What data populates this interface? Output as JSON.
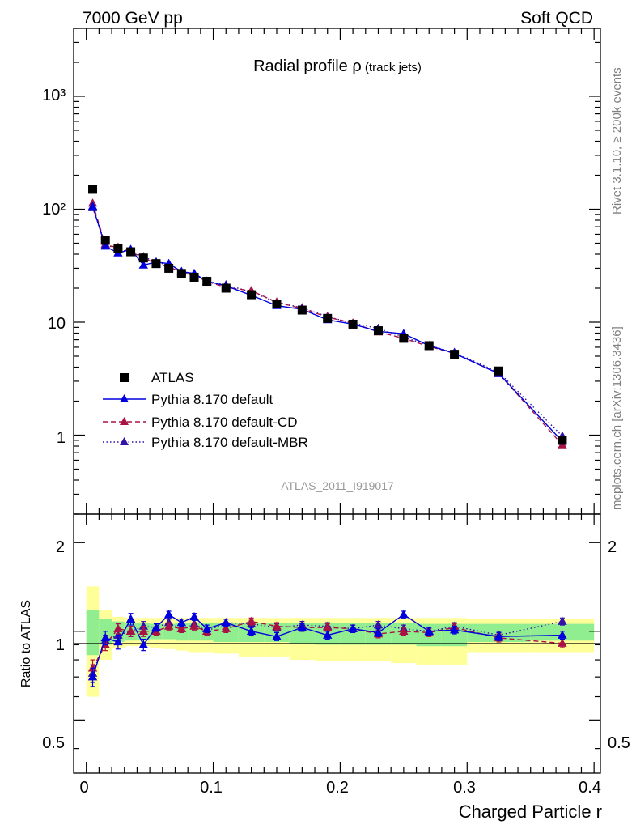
{
  "header": {
    "left": "7000 GeV pp",
    "right": "Soft QCD"
  },
  "side_labels": {
    "rivet": "Rivet 3.1.10, ≥ 200k events",
    "mcplots": "mcplots.cern.ch [arXiv:1306.3436]"
  },
  "chart_data": [
    {
      "type": "line",
      "title_main": "Radial profile ",
      "title_symbol": "ρ",
      "title_suffix": " (track jets)",
      "analysis_id": "ATLAS_2011_I919017",
      "yscale": "log",
      "xlim": [
        -0.01,
        0.405
      ],
      "ylim": [
        0.2,
        4000
      ],
      "ytick_labels": [
        "10³",
        "10²",
        "10",
        "1"
      ],
      "legend_position": "bottom-left",
      "x": [
        0.005,
        0.015,
        0.025,
        0.035,
        0.045,
        0.055,
        0.065,
        0.075,
        0.085,
        0.095,
        0.11,
        0.13,
        0.15,
        0.17,
        0.19,
        0.21,
        0.23,
        0.25,
        0.27,
        0.29,
        0.325,
        0.375
      ],
      "series": [
        {
          "name": "ATLAS",
          "color": "#000000",
          "marker": "square",
          "values": [
            150,
            53,
            45,
            42,
            37,
            33,
            30,
            27,
            25,
            23,
            20,
            17.5,
            14.5,
            12.8,
            10.8,
            9.6,
            8.4,
            7.2,
            6.2,
            5.2,
            3.7,
            0.9
          ]
        },
        {
          "name": "Pythia 8.170 default",
          "color": "#0000dd",
          "marker": "triangle",
          "line": "solid",
          "values": [
            106,
            47,
            41,
            44,
            32,
            34,
            33,
            28,
            27,
            23,
            21,
            17.3,
            14,
            13,
            10.5,
            9.6,
            8.3,
            7.9,
            6.2,
            5.3,
            3.5,
            0.88
          ]
        },
        {
          "name": "Pythia 8.170 default-CD",
          "color": "#aa1144",
          "marker": "triangle",
          "line": "dashed",
          "values": [
            113,
            48,
            46,
            42,
            37,
            33,
            31,
            27.5,
            26,
            23,
            20.3,
            19,
            15,
            13.2,
            11.1,
            9.8,
            8.2,
            7.2,
            6.1,
            5.3,
            3.5,
            0.82
          ]
        },
        {
          "name": "Pythia 8.170 default-MBR",
          "color": "#3311aa",
          "marker": "triangle",
          "line": "dotted",
          "values": [
            103,
            49,
            44,
            42,
            38,
            34,
            32,
            28,
            26.5,
            23,
            21.4,
            18.5,
            15,
            13.4,
            11.2,
            9.8,
            8.8,
            7.4,
            6.2,
            5.4,
            3.6,
            0.98
          ]
        }
      ]
    },
    {
      "type": "line",
      "ylabel": "Ratio to ATLAS",
      "xlabel": "Charged Particle r",
      "yscale": "log",
      "xlim": [
        -0.01,
        0.405
      ],
      "ylim": [
        0.33,
        2.5
      ],
      "ytick_labels": [
        "2",
        "1",
        "0.5"
      ],
      "xtick_labels": [
        "0",
        "0.1",
        "0.2",
        "0.3",
        "0.4"
      ],
      "xticks": [
        0,
        0.1,
        0.2,
        0.3,
        0.4
      ],
      "x": [
        0.005,
        0.015,
        0.025,
        0.035,
        0.045,
        0.055,
        0.065,
        0.075,
        0.085,
        0.095,
        0.11,
        0.13,
        0.15,
        0.17,
        0.19,
        0.21,
        0.23,
        0.25,
        0.27,
        0.29,
        0.325,
        0.375
      ],
      "bands": {
        "bin_edges": [
          0.0,
          0.01,
          0.02,
          0.03,
          0.04,
          0.05,
          0.06,
          0.07,
          0.08,
          0.09,
          0.1,
          0.12,
          0.14,
          0.16,
          0.18,
          0.2,
          0.22,
          0.24,
          0.26,
          0.28,
          0.3,
          0.35,
          0.4
        ],
        "inner_color": "#90ee90",
        "outer_color": "#ffff99",
        "inner": [
          [
            0.83,
            1.18
          ],
          [
            0.9,
            1.1
          ],
          [
            0.92,
            1.08
          ],
          [
            0.93,
            1.07
          ],
          [
            0.93,
            1.07
          ],
          [
            0.94,
            1.06
          ],
          [
            0.94,
            1.06
          ],
          [
            0.93,
            1.07
          ],
          [
            0.93,
            1.07
          ],
          [
            0.93,
            1.07
          ],
          [
            0.92,
            1.07
          ],
          [
            0.92,
            1.07
          ],
          [
            0.92,
            1.07
          ],
          [
            0.91,
            1.07
          ],
          [
            0.9,
            1.07
          ],
          [
            0.9,
            1.07
          ],
          [
            0.9,
            1.07
          ],
          [
            0.9,
            1.07
          ],
          [
            0.89,
            1.06
          ],
          [
            0.89,
            1.06
          ],
          [
            0.92,
            1.06
          ],
          [
            0.93,
            1.06
          ]
        ],
        "outer": [
          [
            0.6,
            1.42
          ],
          [
            0.8,
            1.18
          ],
          [
            0.88,
            1.12
          ],
          [
            0.89,
            1.11
          ],
          [
            0.89,
            1.11
          ],
          [
            0.88,
            1.11
          ],
          [
            0.87,
            1.11
          ],
          [
            0.86,
            1.11
          ],
          [
            0.85,
            1.11
          ],
          [
            0.85,
            1.11
          ],
          [
            0.84,
            1.11
          ],
          [
            0.82,
            1.11
          ],
          [
            0.82,
            1.11
          ],
          [
            0.8,
            1.11
          ],
          [
            0.79,
            1.11
          ],
          [
            0.79,
            1.11
          ],
          [
            0.79,
            1.11
          ],
          [
            0.78,
            1.11
          ],
          [
            0.77,
            1.11
          ],
          [
            0.77,
            1.11
          ],
          [
            0.85,
            1.1
          ],
          [
            0.85,
            1.1
          ]
        ]
      },
      "reference_line": 1,
      "series": [
        {
          "name": "Pythia 8.170 default",
          "color": "#0000dd",
          "line": "solid",
          "values": [
            0.7,
            0.95,
            0.92,
            1.1,
            0.9,
            1.03,
            1.14,
            1.07,
            1.12,
            1.02,
            1.07,
            1.0,
            0.96,
            1.03,
            0.97,
            1.02,
            0.99,
            1.14,
            1.0,
            1.01,
            0.96,
            0.97
          ],
          "errors": [
            0.05,
            0.05,
            0.05,
            0.05,
            0.04,
            0.03,
            0.03,
            0.03,
            0.03,
            0.03,
            0.03,
            0.03,
            0.03,
            0.03,
            0.03,
            0.03,
            0.03,
            0.03,
            0.03,
            0.03,
            0.03,
            0.03
          ]
        },
        {
          "name": "Pythia 8.170 default-CD",
          "color": "#aa1144",
          "line": "dashed",
          "values": [
            0.75,
            0.9,
            1.02,
            1.0,
            1.0,
            1.0,
            1.04,
            1.02,
            1.04,
            1.0,
            1.02,
            1.08,
            1.04,
            1.03,
            1.03,
            1.02,
            0.98,
            1.0,
            0.99,
            1.03,
            0.95,
            0.91
          ],
          "errors": [
            0.05,
            0.04,
            0.04,
            0.04,
            0.04,
            0.03,
            0.03,
            0.03,
            0.03,
            0.03,
            0.03,
            0.03,
            0.03,
            0.03,
            0.03,
            0.03,
            0.03,
            0.03,
            0.03,
            0.03,
            0.03,
            0.03
          ]
        },
        {
          "name": "Pythia 8.170 default-MBR",
          "color": "#3311aa",
          "line": "dotted",
          "values": [
            0.72,
            0.93,
            0.97,
            1.0,
            1.04,
            1.03,
            1.07,
            1.02,
            1.06,
            1.0,
            1.07,
            1.06,
            1.03,
            1.05,
            1.04,
            1.02,
            1.05,
            1.02,
            1.0,
            1.04,
            0.97,
            1.08
          ],
          "errors": [
            0.05,
            0.04,
            0.04,
            0.04,
            0.04,
            0.03,
            0.03,
            0.03,
            0.03,
            0.03,
            0.03,
            0.03,
            0.03,
            0.03,
            0.03,
            0.03,
            0.03,
            0.03,
            0.03,
            0.03,
            0.03,
            0.03
          ]
        }
      ]
    }
  ]
}
